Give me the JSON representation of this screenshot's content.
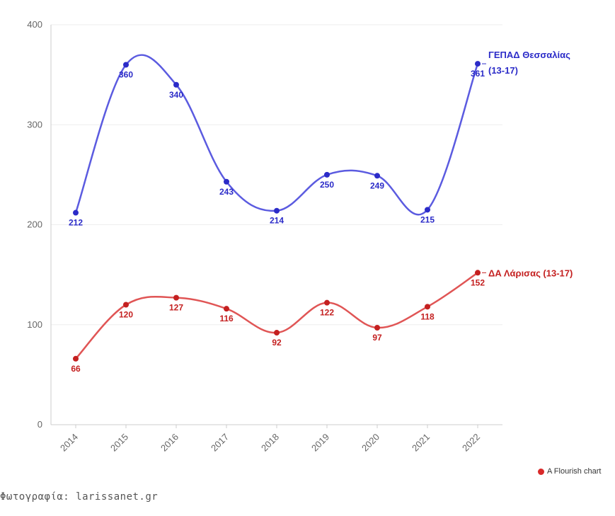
{
  "chart_data": {
    "type": "line",
    "title": "",
    "xlabel": "",
    "ylabel": "",
    "x": [
      "2014",
      "2015",
      "2016",
      "2017",
      "2018",
      "2019",
      "2020",
      "2021",
      "2022"
    ],
    "ylim": [
      0,
      400
    ],
    "yticks": [
      0,
      100,
      200,
      300,
      400
    ],
    "grid": true,
    "series": [
      {
        "name": "ΓΕΠΑΔ Θεσσαλίας",
        "name_suffix": "(13-17)",
        "color": "#2b2bc8",
        "line_color": "#5b5be0",
        "values": [
          212,
          360,
          340,
          243,
          214,
          250,
          249,
          215,
          361
        ]
      },
      {
        "name": "ΔΑ Λάρισας (13-17)",
        "name_suffix": "",
        "color": "#c42020",
        "line_color": "#e05555",
        "values": [
          66,
          120,
          127,
          116,
          92,
          122,
          97,
          118,
          152
        ]
      }
    ]
  },
  "footer": {
    "photo_credit": "Φωτογραφία: larissanet.gr",
    "flourish_label": "A Flourish chart"
  }
}
